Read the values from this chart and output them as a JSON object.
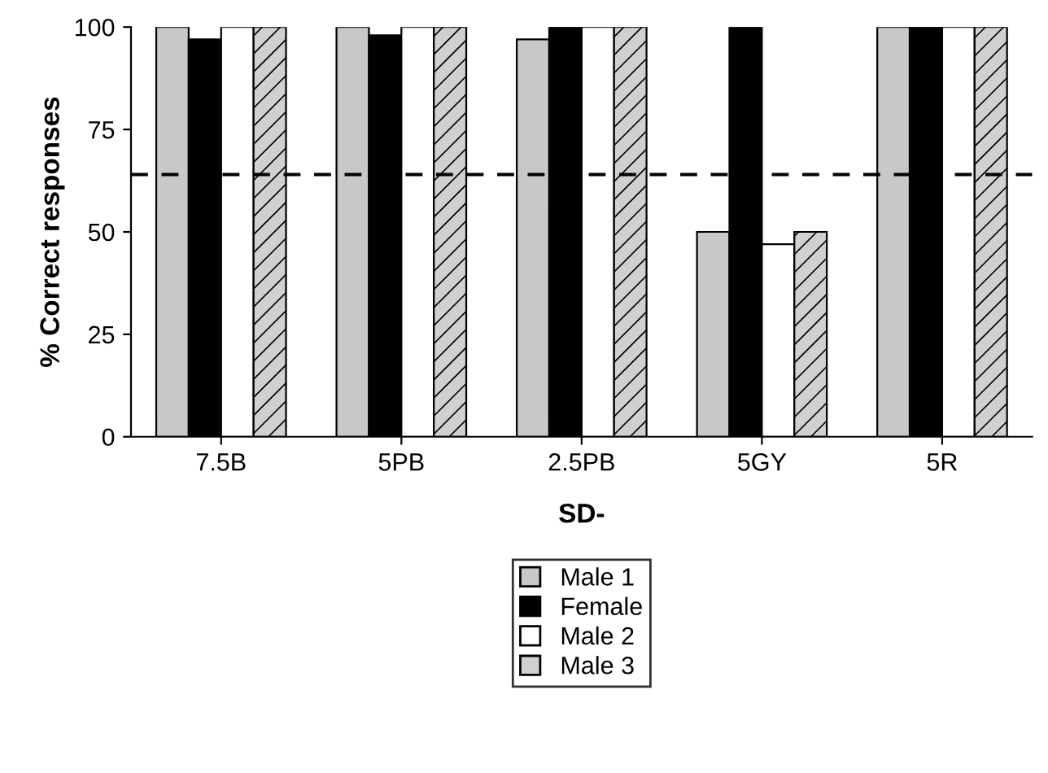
{
  "chart_data": {
    "type": "bar",
    "xlabel": "SD-",
    "ylabel": "% Correct responses",
    "categories": [
      "7.5B",
      "5PB",
      "2.5PB",
      "5GY",
      "5R"
    ],
    "series": [
      {
        "name": "Male 1",
        "color": "#c8c8c8",
        "values": [
          100,
          100,
          97,
          50,
          100
        ]
      },
      {
        "name": "Female",
        "color": "#000000",
        "values": [
          97,
          98,
          100,
          100,
          100
        ]
      },
      {
        "name": "Male 2",
        "color": "#ffffff",
        "values": [
          100,
          100,
          100,
          47,
          100
        ]
      },
      {
        "name": "Male 3",
        "color": "#d0d0d0",
        "values": [
          100,
          100,
          100,
          50,
          100
        ]
      }
    ],
    "ylim": [
      0,
      100
    ],
    "yticks": [
      0,
      25,
      50,
      75,
      100
    ],
    "grid": false,
    "legend": "bottom",
    "ref_lines": [
      {
        "axis": "y",
        "value": 64,
        "line_style": "dashed",
        "color": "#000000"
      }
    ]
  }
}
